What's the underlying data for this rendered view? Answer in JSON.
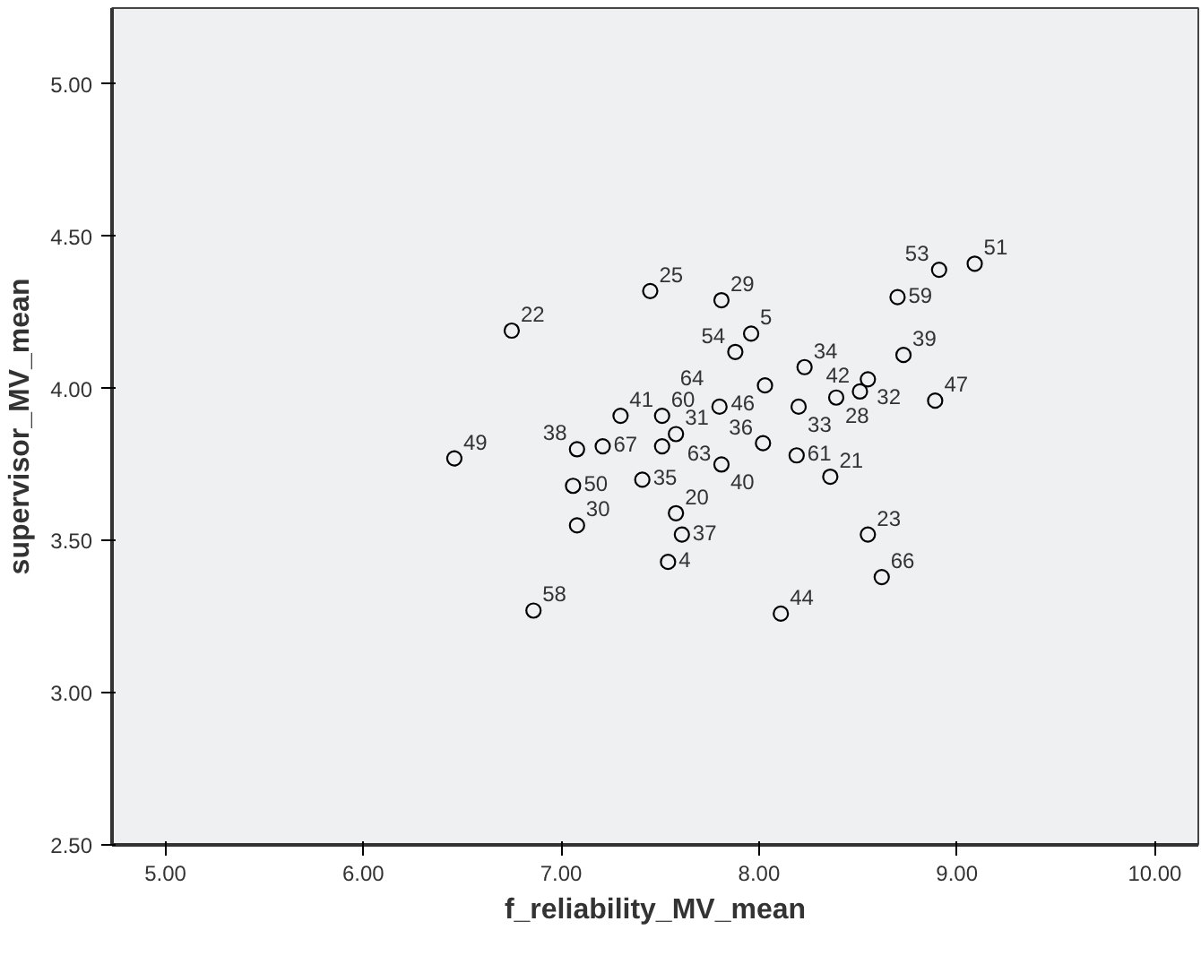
{
  "chart_data": {
    "type": "scatter",
    "xlabel": "f_reliability_MV_mean",
    "ylabel": "supervisor_MV_mean",
    "xlim": [
      4.73,
      10.22
    ],
    "ylim": [
      2.5,
      5.25
    ],
    "xticks": [
      {
        "value": 5,
        "label": "5.00"
      },
      {
        "value": 6,
        "label": "6.00"
      },
      {
        "value": 7,
        "label": "7.00"
      },
      {
        "value": 8,
        "label": "8.00"
      },
      {
        "value": 9,
        "label": "9.00"
      },
      {
        "value": 10,
        "label": "10.00"
      }
    ],
    "yticks": [
      {
        "value": 2.5,
        "label": "2.50"
      },
      {
        "value": 3,
        "label": "3.00"
      },
      {
        "value": 3.5,
        "label": "3.50"
      },
      {
        "value": 4,
        "label": "4.00"
      },
      {
        "value": 4.5,
        "label": "4.50"
      },
      {
        "value": 5,
        "label": "5.00"
      }
    ],
    "grid": false,
    "marker": "circle",
    "series": [
      {
        "color": "#000000",
        "x": [
          6.46,
          7.06,
          7.08,
          7.21,
          7.3,
          7.51,
          7.41,
          7.51,
          7.58,
          7.81,
          8.02,
          8.2,
          8.19,
          7.08,
          6.75,
          7.45,
          7.81,
          7.96,
          7.88,
          8.03,
          8.23,
          7.8,
          8.39,
          8.51,
          8.55,
          8.36,
          8.73,
          8.89,
          8.7,
          8.91,
          9.09,
          7.58,
          7.61,
          7.54,
          6.86,
          8.11,
          8.55,
          8.62
        ],
        "values": [
          3.77,
          3.68,
          3.8,
          3.81,
          3.91,
          3.91,
          3.7,
          3.81,
          3.85,
          3.75,
          3.82,
          3.94,
          3.78,
          3.55,
          4.19,
          4.32,
          4.29,
          4.18,
          4.12,
          4.01,
          4.07,
          3.94,
          3.97,
          3.99,
          4.03,
          3.71,
          4.11,
          3.96,
          4.3,
          4.39,
          4.41,
          3.59,
          3.52,
          3.43,
          3.27,
          3.26,
          3.52,
          3.38
        ]
      }
    ],
    "annotations": [
      {
        "text": "49",
        "x": 6.46,
        "y": 3.77
      },
      {
        "text": "50",
        "x": 7.06,
        "y": 3.68
      },
      {
        "text": "38",
        "x": 7.08,
        "y": 3.8
      },
      {
        "text": "67",
        "x": 7.21,
        "y": 3.81
      },
      {
        "text": "41",
        "x": 7.3,
        "y": 3.91
      },
      {
        "text": "60",
        "x": 7.51,
        "y": 3.91
      },
      {
        "text": "35",
        "x": 7.41,
        "y": 3.7
      },
      {
        "text": "63",
        "x": 7.51,
        "y": 3.81
      },
      {
        "text": "31",
        "x": 7.58,
        "y": 3.85
      },
      {
        "text": "40",
        "x": 7.81,
        "y": 3.75
      },
      {
        "text": "36",
        "x": 8.02,
        "y": 3.82
      },
      {
        "text": "33",
        "x": 8.2,
        "y": 3.94
      },
      {
        "text": "61",
        "x": 8.19,
        "y": 3.78
      },
      {
        "text": "30",
        "x": 7.08,
        "y": 3.55
      },
      {
        "text": "22",
        "x": 6.75,
        "y": 4.19
      },
      {
        "text": "25",
        "x": 7.45,
        "y": 4.32
      },
      {
        "text": "29",
        "x": 7.81,
        "y": 4.29
      },
      {
        "text": "5",
        "x": 7.96,
        "y": 4.18
      },
      {
        "text": "54",
        "x": 7.88,
        "y": 4.12
      },
      {
        "text": "46",
        "x": 8.03,
        "y": 4.01
      },
      {
        "text": "34",
        "x": 8.23,
        "y": 4.07
      },
      {
        "text": "64",
        "x": 7.8,
        "y": 3.94
      },
      {
        "text": "28",
        "x": 8.39,
        "y": 3.97
      },
      {
        "text": "42",
        "x": 8.51,
        "y": 3.99
      },
      {
        "text": "32",
        "x": 8.55,
        "y": 4.03
      },
      {
        "text": "21",
        "x": 8.36,
        "y": 3.71
      },
      {
        "text": "39",
        "x": 8.73,
        "y": 4.11
      },
      {
        "text": "47",
        "x": 8.89,
        "y": 3.96
      },
      {
        "text": "59",
        "x": 8.7,
        "y": 4.3
      },
      {
        "text": "53",
        "x": 8.91,
        "y": 4.39
      },
      {
        "text": "51",
        "x": 9.09,
        "y": 4.41
      },
      {
        "text": "20",
        "x": 7.58,
        "y": 3.59
      },
      {
        "text": "37",
        "x": 7.61,
        "y": 3.52
      },
      {
        "text": "4",
        "x": 7.54,
        "y": 3.43
      },
      {
        "text": "58",
        "x": 6.86,
        "y": 3.27
      },
      {
        "text": "44",
        "x": 8.11,
        "y": 3.26
      },
      {
        "text": "23",
        "x": 8.55,
        "y": 3.52
      },
      {
        "text": "66",
        "x": 8.62,
        "y": 3.38
      }
    ]
  }
}
